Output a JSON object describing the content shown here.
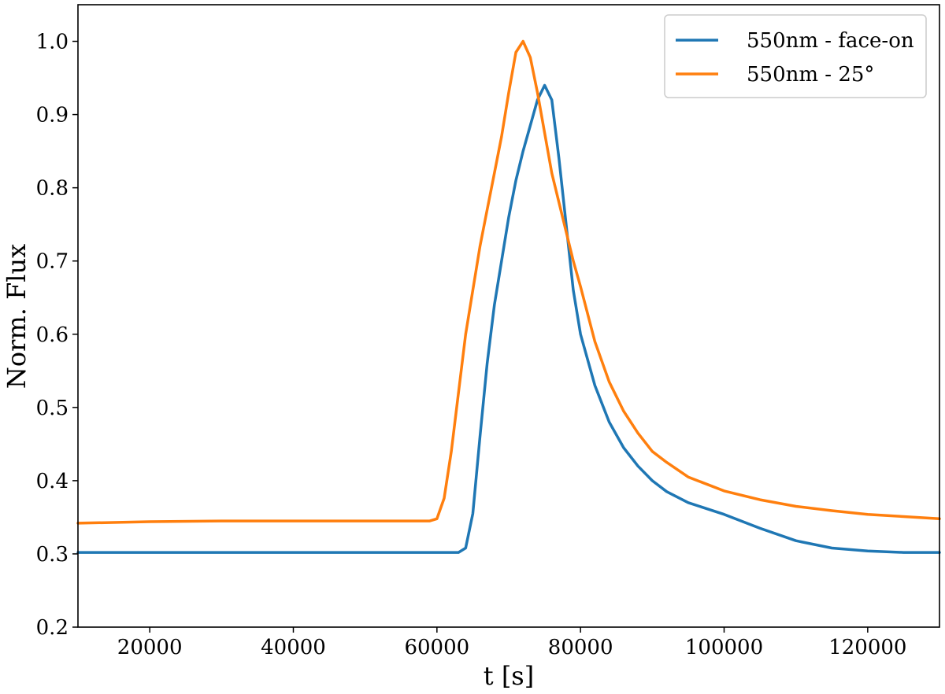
{
  "chart_data": {
    "type": "line",
    "xlabel": "t [s]",
    "ylabel": "Norm. Flux",
    "xlim": [
      10000,
      130000
    ],
    "ylim": [
      0.2,
      1.05
    ],
    "xticks": [
      20000,
      40000,
      60000,
      80000,
      100000,
      120000
    ],
    "yticks": [
      0.2,
      0.3,
      0.4,
      0.5,
      0.6,
      0.7,
      0.8,
      0.9,
      1.0
    ],
    "xtick_labels": [
      "20000",
      "40000",
      "60000",
      "80000",
      "100000",
      "120000"
    ],
    "ytick_labels": [
      "0.2",
      "0.3",
      "0.4",
      "0.5",
      "0.6",
      "0.7",
      "0.8",
      "0.9",
      "1.0"
    ],
    "grid": false,
    "legend_position": "top-right",
    "series": [
      {
        "name": "550nm - face-on",
        "color": "#1f77b4",
        "points": [
          [
            10000,
            0.302
          ],
          [
            20000,
            0.302
          ],
          [
            30000,
            0.302
          ],
          [
            40000,
            0.302
          ],
          [
            50000,
            0.302
          ],
          [
            60000,
            0.302
          ],
          [
            63000,
            0.302
          ],
          [
            64000,
            0.308
          ],
          [
            65000,
            0.355
          ],
          [
            66000,
            0.46
          ],
          [
            67000,
            0.56
          ],
          [
            68000,
            0.64
          ],
          [
            69000,
            0.7
          ],
          [
            70000,
            0.76
          ],
          [
            71000,
            0.81
          ],
          [
            72000,
            0.85
          ],
          [
            73000,
            0.885
          ],
          [
            74000,
            0.92
          ],
          [
            75000,
            0.94
          ],
          [
            76000,
            0.92
          ],
          [
            77000,
            0.84
          ],
          [
            78000,
            0.75
          ],
          [
            79000,
            0.66
          ],
          [
            80000,
            0.6
          ],
          [
            82000,
            0.53
          ],
          [
            84000,
            0.48
          ],
          [
            86000,
            0.445
          ],
          [
            88000,
            0.42
          ],
          [
            90000,
            0.4
          ],
          [
            92000,
            0.385
          ],
          [
            95000,
            0.37
          ],
          [
            100000,
            0.354
          ],
          [
            105000,
            0.335
          ],
          [
            110000,
            0.318
          ],
          [
            115000,
            0.308
          ],
          [
            120000,
            0.304
          ],
          [
            125000,
            0.302
          ],
          [
            130000,
            0.302
          ]
        ]
      },
      {
        "name": "550nm - 25°",
        "color": "#ff7f0e",
        "points": [
          [
            10000,
            0.342
          ],
          [
            20000,
            0.344
          ],
          [
            30000,
            0.345
          ],
          [
            40000,
            0.345
          ],
          [
            50000,
            0.345
          ],
          [
            59000,
            0.345
          ],
          [
            60000,
            0.348
          ],
          [
            61000,
            0.376
          ],
          [
            62000,
            0.44
          ],
          [
            63000,
            0.52
          ],
          [
            64000,
            0.6
          ],
          [
            65000,
            0.66
          ],
          [
            66000,
            0.72
          ],
          [
            67000,
            0.77
          ],
          [
            68000,
            0.82
          ],
          [
            69000,
            0.87
          ],
          [
            70000,
            0.93
          ],
          [
            71000,
            0.985
          ],
          [
            72000,
            1.0
          ],
          [
            73000,
            0.978
          ],
          [
            74000,
            0.93
          ],
          [
            75000,
            0.875
          ],
          [
            76000,
            0.82
          ],
          [
            77000,
            0.78
          ],
          [
            78000,
            0.74
          ],
          [
            79000,
            0.7
          ],
          [
            80000,
            0.665
          ],
          [
            82000,
            0.59
          ],
          [
            84000,
            0.535
          ],
          [
            86000,
            0.495
          ],
          [
            88000,
            0.465
          ],
          [
            90000,
            0.44
          ],
          [
            92000,
            0.425
          ],
          [
            95000,
            0.405
          ],
          [
            100000,
            0.386
          ],
          [
            105000,
            0.374
          ],
          [
            110000,
            0.365
          ],
          [
            115000,
            0.359
          ],
          [
            120000,
            0.354
          ],
          [
            125000,
            0.351
          ],
          [
            130000,
            0.348
          ]
        ]
      }
    ]
  }
}
